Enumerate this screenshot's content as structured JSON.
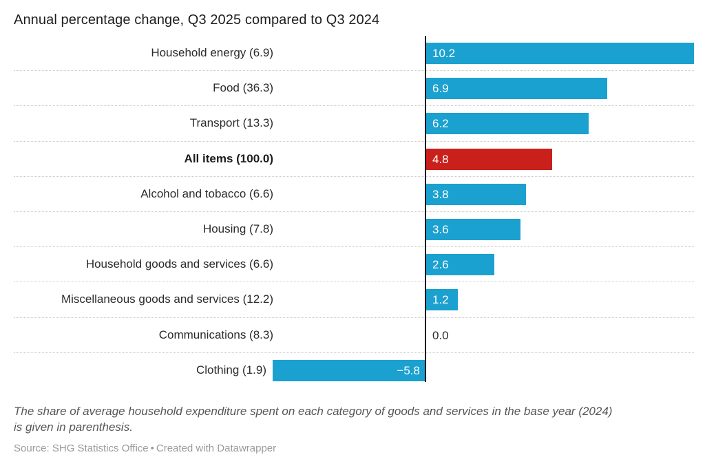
{
  "title": "Annual percentage change, Q3 2025 compared to Q3 2024",
  "colors": {
    "bar_default": "#1ba1cf",
    "bar_highlight": "#c9201c",
    "axis": "#161616",
    "separator": "#cbcbcb"
  },
  "rows": [
    {
      "label": "Household energy (6.9)",
      "value": 10.2,
      "value_label": "10.2",
      "highlight": false,
      "bold": false
    },
    {
      "label": "Food (36.3)",
      "value": 6.9,
      "value_label": "6.9",
      "highlight": false,
      "bold": false
    },
    {
      "label": "Transport (13.3)",
      "value": 6.2,
      "value_label": "6.2",
      "highlight": false,
      "bold": false
    },
    {
      "label": "All items (100.0)",
      "value": 4.8,
      "value_label": "4.8",
      "highlight": true,
      "bold": true
    },
    {
      "label": "Alcohol and tobacco (6.6)",
      "value": 3.8,
      "value_label": "3.8",
      "highlight": false,
      "bold": false
    },
    {
      "label": "Housing (7.8)",
      "value": 3.6,
      "value_label": "3.6",
      "highlight": false,
      "bold": false
    },
    {
      "label": "Household goods and services (6.6)",
      "value": 2.6,
      "value_label": "2.6",
      "highlight": false,
      "bold": false
    },
    {
      "label": "Miscellaneous goods and services (12.2)",
      "value": 1.2,
      "value_label": "1.2",
      "highlight": false,
      "bold": false
    },
    {
      "label": "Communications (8.3)",
      "value": 0.0,
      "value_label": "0.0",
      "highlight": false,
      "bold": false
    },
    {
      "label": "Clothing (1.9)",
      "value": -5.8,
      "value_label": "−5.8",
      "highlight": false,
      "bold": false
    }
  ],
  "note": {
    "line1": "The share of average household expenditure spent on each category of goods and services in the base year (2024)",
    "line2": "is given in parenthesis."
  },
  "source": {
    "prefix": "Source: SHG Statistics Office",
    "separator": "•",
    "attribution": "Created with Datawrapper"
  },
  "chart_data": {
    "type": "bar",
    "orientation": "horizontal",
    "title": "Annual percentage change, Q3 2025 compared to Q3 2024",
    "categories": [
      "Household energy (6.9)",
      "Food (36.3)",
      "Transport (13.3)",
      "All items (100.0)",
      "Alcohol and tobacco (6.6)",
      "Housing (7.8)",
      "Household goods and services (6.6)",
      "Miscellaneous goods and services (12.2)",
      "Communications (8.3)",
      "Clothing (1.9)"
    ],
    "values": [
      10.2,
      6.9,
      6.2,
      4.8,
      3.8,
      3.6,
      2.6,
      1.2,
      0.0,
      -5.8
    ],
    "highlighted_category": "All items (100.0)",
    "value_labels_shown": true,
    "xlim": [
      -5.8,
      10.2
    ],
    "grid": "dotted horizontal row separators, vertical zero axis line",
    "legend": "none",
    "note": "The share of average household expenditure spent on each category of goods and services in the base year (2024) is given in parenthesis.",
    "source": "SHG Statistics Office",
    "attribution": "Created with Datawrapper"
  }
}
